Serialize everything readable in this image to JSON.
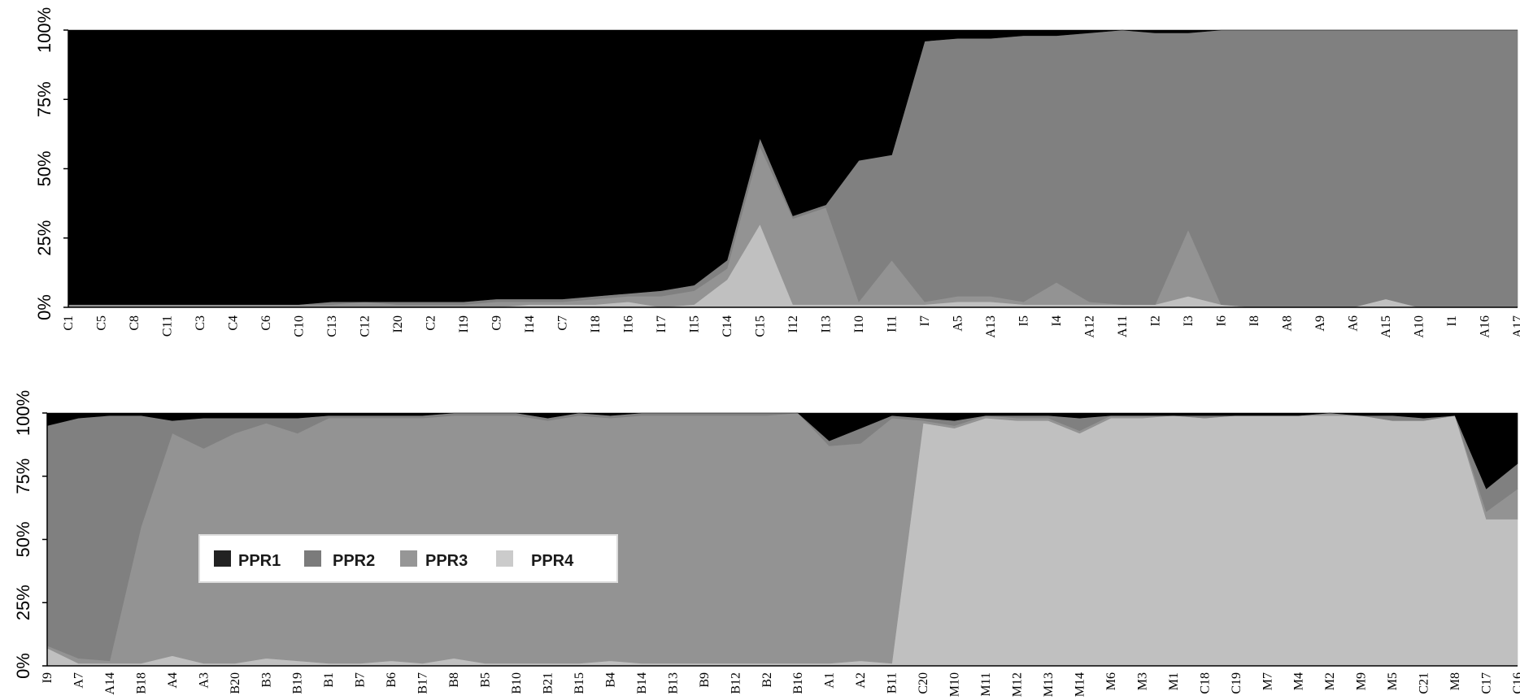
{
  "legend": {
    "entries": [
      "PPR1",
      "PPR2",
      "PPR3",
      "PPR4"
    ],
    "placement": "lower-left of second panel"
  },
  "colors": {
    "PPR1": "#000000",
    "PPR2": "#808080",
    "PPR3": "#939393",
    "PPR4": "#c0c0c0",
    "legend_swatch_PPR1": "#222222",
    "legend_swatch_PPR2": "#7b7b7b",
    "legend_swatch_PPR3": "#969696",
    "legend_swatch_PPR4": "#cbcbcb"
  },
  "chart_data": [
    {
      "type": "area",
      "stacking": "percent",
      "y_ticks": [
        "0%",
        "25%",
        "50%",
        "75%",
        "100%"
      ],
      "ylim": [
        0,
        100
      ],
      "grid": false,
      "categories": [
        "C1",
        "C5",
        "C8",
        "C11",
        "C3",
        "C4",
        "C6",
        "C10",
        "C13",
        "C12",
        "I20",
        "C2",
        "I19",
        "C9",
        "I14",
        "C7",
        "I18",
        "I16",
        "I17",
        "I15",
        "C14",
        "C15",
        "I12",
        "I13",
        "I10",
        "I11",
        "I7",
        "A5",
        "A13",
        "I5",
        "I4",
        "A12",
        "A11",
        "I2",
        "I3",
        "I6",
        "I8",
        "A8",
        "A9",
        "A6",
        "A15",
        "A10",
        "I1",
        "A16",
        "A17"
      ],
      "series": [
        {
          "name": "PPR4",
          "values": [
            0,
            0,
            0,
            0,
            0,
            0,
            0,
            0,
            0,
            0,
            0,
            0,
            0,
            0,
            1,
            1,
            1,
            2,
            0,
            1,
            10,
            30,
            1,
            1,
            1,
            1,
            1,
            2,
            2,
            1,
            1,
            1,
            1,
            1,
            4,
            1,
            0,
            0,
            0,
            0,
            3,
            0,
            0,
            0,
            0
          ]
        },
        {
          "name": "PPR3",
          "values": [
            1,
            1,
            1,
            1,
            1,
            1,
            1,
            1,
            1,
            2,
            1,
            1,
            1,
            2,
            1,
            1,
            2,
            2,
            4,
            5,
            4,
            28,
            31,
            35,
            1,
            16,
            1,
            2,
            2,
            1,
            8,
            1,
            0,
            0,
            24,
            0,
            0,
            0,
            0,
            0,
            0,
            0,
            0,
            0,
            0
          ]
        },
        {
          "name": "PPR2",
          "values": [
            0,
            0,
            0,
            0,
            0,
            0,
            0,
            0,
            1,
            0,
            1,
            1,
            1,
            1,
            1,
            1,
            1,
            1,
            2,
            2,
            3,
            3,
            1,
            1,
            51,
            38,
            94,
            93,
            93,
            96,
            89,
            97,
            99,
            98,
            71,
            99,
            100,
            100,
            100,
            100,
            97,
            100,
            100,
            100,
            100
          ]
        },
        {
          "name": "PPR1",
          "values": [
            99,
            99,
            99,
            99,
            99,
            99,
            99,
            99,
            98,
            98,
            98,
            98,
            98,
            97,
            97,
            97,
            96,
            95,
            94,
            92,
            83,
            39,
            67,
            63,
            47,
            45,
            4,
            3,
            3,
            2,
            2,
            1,
            0,
            1,
            1,
            0,
            0,
            0,
            0,
            0,
            0,
            0,
            0,
            0,
            0
          ]
        }
      ]
    },
    {
      "type": "area",
      "stacking": "percent",
      "y_ticks": [
        "0%",
        "25%",
        "50%",
        "75%",
        "100%"
      ],
      "ylim": [
        0,
        100
      ],
      "grid": false,
      "categories": [
        "I9",
        "A7",
        "A14",
        "B18",
        "A4",
        "A3",
        "B20",
        "B3",
        "B19",
        "B1",
        "B7",
        "B6",
        "B17",
        "B8",
        "B5",
        "B10",
        "B21",
        "B15",
        "B4",
        "B14",
        "B13",
        "B9",
        "B12",
        "B2",
        "B16",
        "A1",
        "A2",
        "B11",
        "C20",
        "M10",
        "M11",
        "M12",
        "M13",
        "M14",
        "M6",
        "M3",
        "M1",
        "C18",
        "C19",
        "M7",
        "M4",
        "M2",
        "M9",
        "M5",
        "C21",
        "M8",
        "C17",
        "C16"
      ],
      "series": [
        {
          "name": "PPR4",
          "values": [
            7,
            1,
            1,
            1,
            4,
            1,
            1,
            3,
            2,
            1,
            1,
            2,
            1,
            3,
            1,
            1,
            1,
            1,
            2,
            1,
            1,
            1,
            1,
            1,
            1,
            1,
            2,
            1,
            96,
            94,
            98,
            97,
            97,
            92,
            98,
            98,
            99,
            98,
            99,
            99,
            99,
            99,
            99,
            97,
            97,
            99,
            58,
            58
          ]
        },
        {
          "name": "PPR3",
          "values": [
            1,
            2,
            1,
            54,
            88,
            85,
            91,
            93,
            90,
            97,
            97,
            96,
            97,
            96,
            98,
            98,
            96,
            98,
            96,
            98,
            98,
            98,
            98,
            98,
            99,
            86,
            86,
            97,
            1,
            1,
            1,
            1,
            1,
            1,
            1,
            1,
            0,
            0,
            0,
            0,
            0,
            1,
            0,
            0,
            0,
            0,
            3,
            12
          ]
        },
        {
          "name": "PPR2",
          "values": [
            87,
            95,
            97,
            44,
            5,
            12,
            6,
            2,
            6,
            1,
            1,
            1,
            1,
            1,
            1,
            1,
            1,
            1,
            1,
            1,
            1,
            1,
            1,
            1,
            0,
            2,
            6,
            1,
            1,
            2,
            0,
            1,
            1,
            5,
            0,
            0,
            0,
            1,
            0,
            0,
            0,
            0,
            0,
            2,
            1,
            0,
            9,
            10
          ]
        },
        {
          "name": "PPR1",
          "values": [
            5,
            2,
            1,
            1,
            3,
            2,
            2,
            2,
            2,
            1,
            1,
            1,
            1,
            0,
            0,
            0,
            2,
            0,
            1,
            0,
            0,
            0,
            0,
            0,
            0,
            11,
            6,
            1,
            2,
            3,
            1,
            1,
            1,
            2,
            1,
            1,
            1,
            1,
            1,
            1,
            1,
            0,
            1,
            1,
            2,
            1,
            30,
            20
          ]
        }
      ]
    }
  ]
}
